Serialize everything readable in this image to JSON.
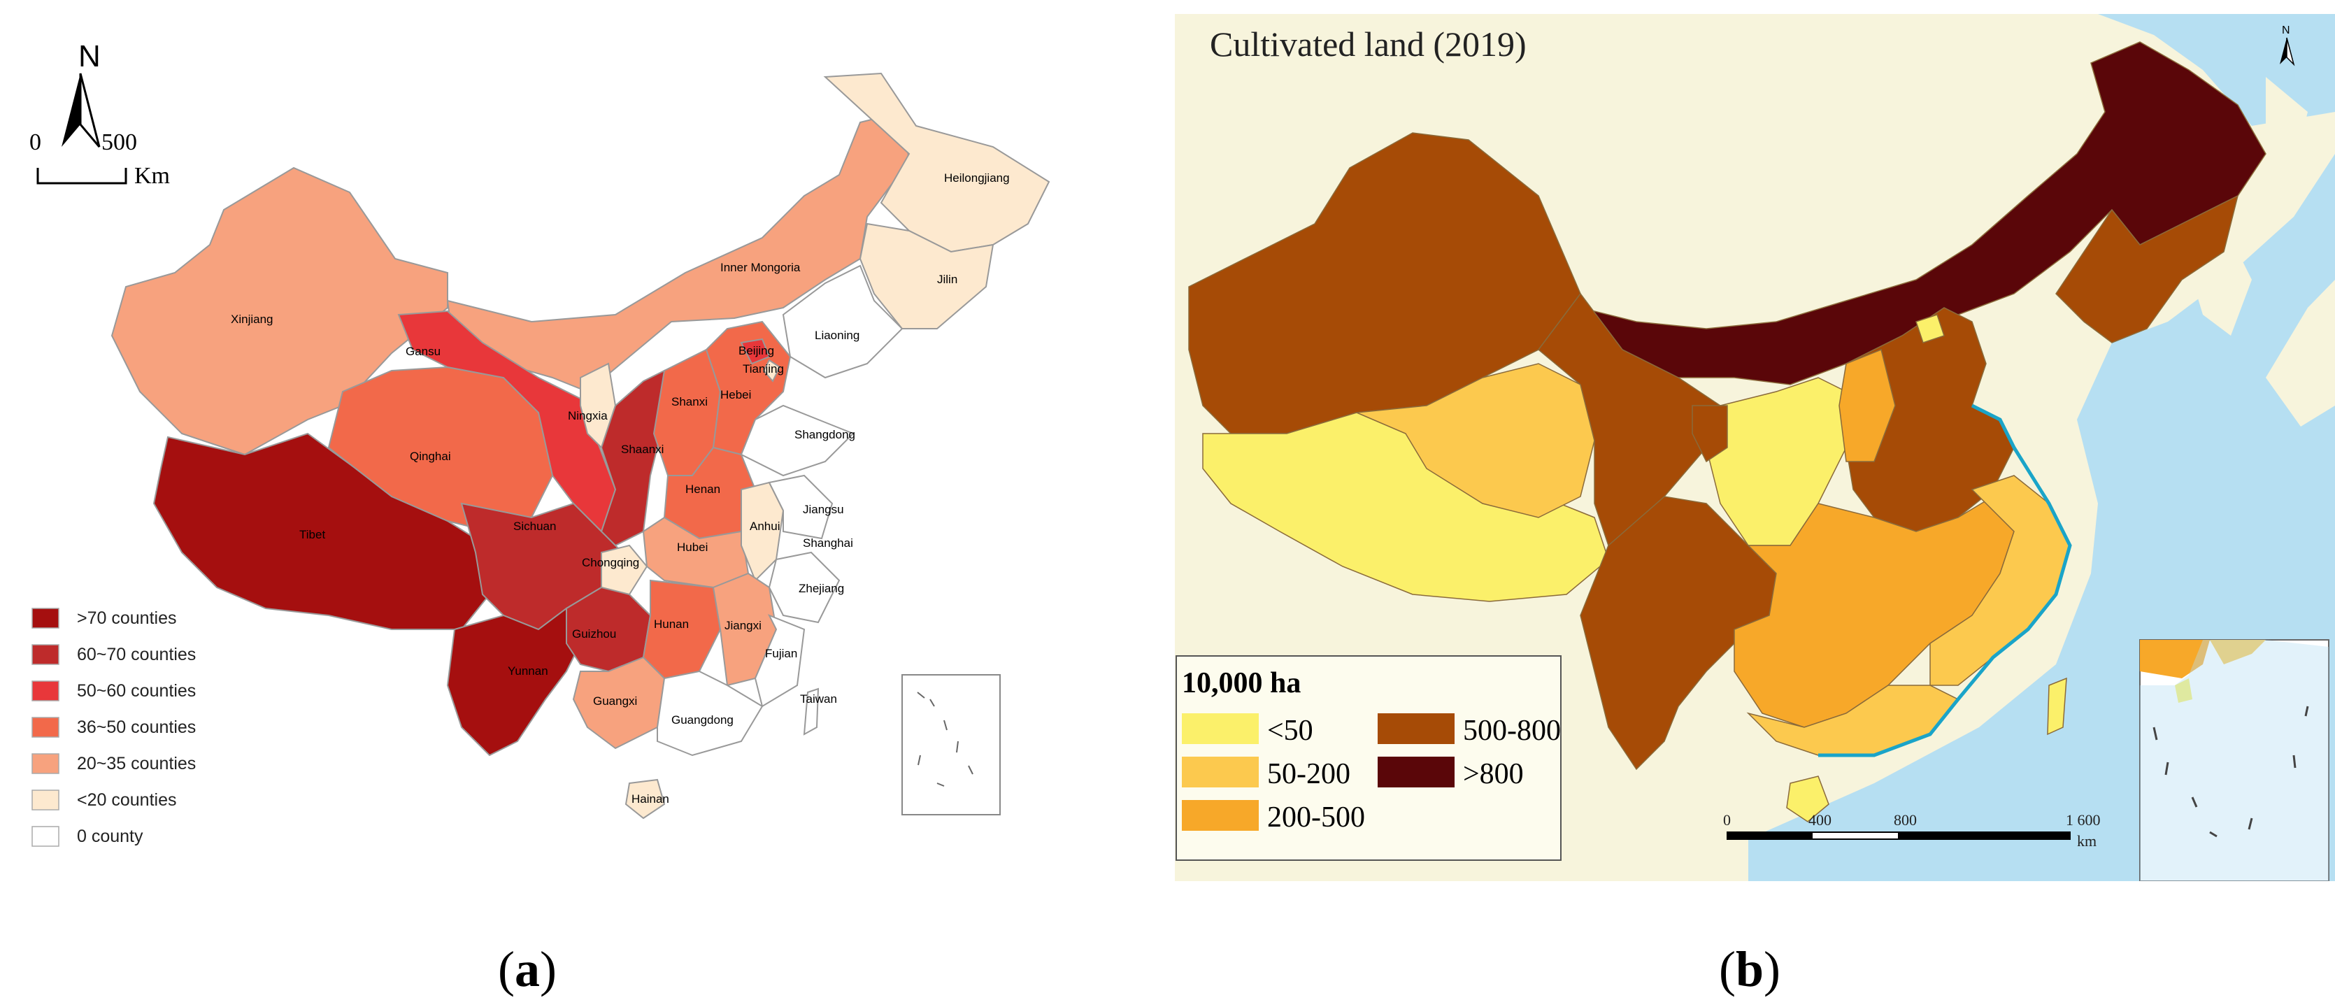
{
  "panel_a": {
    "caption_open": "(",
    "caption_letter": "a",
    "caption_close": ")",
    "north_label": "N",
    "scale_start": "0",
    "scale_end": "500",
    "scale_unit": "Km",
    "legend": [
      {
        "label": ">70 counties",
        "color": "#a50f0f"
      },
      {
        "label": "60~70 counties",
        "color": "#be2b2b"
      },
      {
        "label": "50~60 counties",
        "color": "#e8373a"
      },
      {
        "label": "36~50 counties",
        "color": "#f2694a"
      },
      {
        "label": "20~35 counties",
        "color": "#f7a27e"
      },
      {
        "label": "<20 counties",
        "color": "#fde9cf"
      },
      {
        "label": "0 county",
        "color": "#ffffff"
      }
    ],
    "provinces": {
      "heilongjiang": "Heilongjiang",
      "jilin": "Jilin",
      "liaoning": "Liaoning",
      "inner_mongolia": "Inner Mongoria",
      "xinjiang": "Xinjiang",
      "gansu": "Gansu",
      "ningxia": "Ningxia",
      "beijing": "Beijing",
      "tianjing": "Tianjing",
      "hebei": "Hebei",
      "shanxi": "Shanxi",
      "shaanxi": "Shaanxi",
      "shangdong": "Shangdong",
      "qinghai": "Qinghai",
      "henan": "Henan",
      "jiangsu": "Jiangsu",
      "anhui": "Anhui",
      "shanghai": "Shanghai",
      "tibet": "Tibet",
      "sichuan": "Sichuan",
      "chongqing": "Chongqing",
      "hubei": "Hubei",
      "zhejiang": "Zhejiang",
      "hunan": "Hunan",
      "jiangxi": "Jiangxi",
      "guizhou": "Guizhou",
      "fujian": "Fujian",
      "yunnan": "Yunnan",
      "taiwan": "Taiwan",
      "guangxi": "Guangxi",
      "guangdong": "Guangdong",
      "hainan": "Hainan"
    }
  },
  "panel_b": {
    "caption_open": "(",
    "caption_letter": "b",
    "caption_close": ")",
    "title": "Cultivated land (2019)",
    "legend_title": "10,000 ha",
    "legend": [
      {
        "label": "<50",
        "color": "#fbf06a"
      },
      {
        "label": "50-200",
        "color": "#fcc94e"
      },
      {
        "label": "200-500",
        "color": "#f7a829"
      },
      {
        "label": "500-800",
        "color": "#a64b06"
      },
      {
        "label": ">800",
        "color": "#5a0609"
      }
    ],
    "scale_ticks": [
      "0",
      "400",
      "800",
      "1 600"
    ],
    "scale_unit": "km",
    "sea_color": "#b6dff2",
    "land_color": "#f7f4dc"
  }
}
